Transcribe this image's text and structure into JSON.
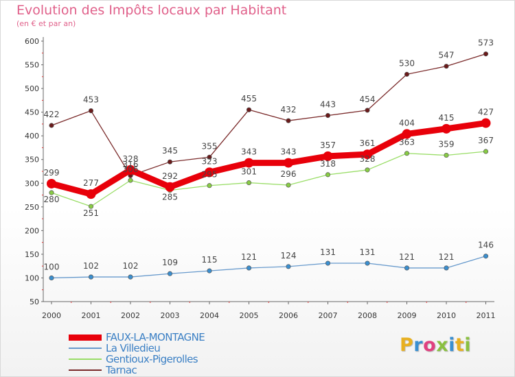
{
  "header": {
    "title": "Evolution des Impôts locaux par Habitant",
    "subtitle": "(en € et par an)"
  },
  "logo": {
    "letters": [
      "P",
      "r",
      "o",
      "x",
      "i",
      "t",
      "i"
    ],
    "colors": [
      "#e8b020",
      "#3a8fd0",
      "#e04080",
      "#8ac040",
      "#3a8fd0",
      "#e8b020",
      "#8ac040"
    ]
  },
  "chart_data": {
    "type": "line",
    "title": "Evolution des Impôts locaux par Habitant",
    "subtitle": "(en € et par an)",
    "xlabel": "",
    "ylabel": "",
    "ylim": [
      50,
      600
    ],
    "yticks": [
      50,
      100,
      150,
      200,
      250,
      300,
      350,
      400,
      450,
      500,
      550,
      600
    ],
    "x": [
      "2000",
      "2001",
      "2002",
      "2003",
      "2004",
      "2005",
      "2006",
      "2007",
      "2008",
      "2009",
      "2010",
      "2011"
    ],
    "grid": false,
    "legend_position": "bottom-left",
    "series": [
      {
        "name": "FAUX-LA-MONTAGNE",
        "color": "#e8000a",
        "marker_fill": "#e8000a",
        "weight": "heavy",
        "values": [
          299,
          277,
          328,
          292,
          323,
          343,
          343,
          357,
          361,
          404,
          415,
          427
        ]
      },
      {
        "name": "La Villedieu",
        "color": "#6699cc",
        "marker_fill": "#3a8fd0",
        "weight": "thin",
        "values": [
          100,
          102,
          102,
          109,
          115,
          121,
          124,
          131,
          131,
          121,
          121,
          146
        ]
      },
      {
        "name": "Gentioux-Pigerolles",
        "color": "#99dd66",
        "marker_fill": "#88cc44",
        "weight": "thin",
        "values": [
          280,
          251,
          306,
          285,
          295,
          301,
          296,
          318,
          328,
          363,
          359,
          367
        ]
      },
      {
        "name": "Tarnac",
        "color": "#7a2a2a",
        "marker_fill": "#6a1a1a",
        "weight": "thin",
        "values": [
          422,
          453,
          316,
          345,
          355,
          455,
          432,
          443,
          454,
          530,
          547,
          573
        ]
      }
    ]
  }
}
